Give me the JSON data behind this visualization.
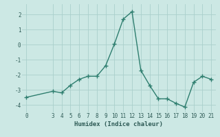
{
  "title": "",
  "xlabel": "Humidex (Indice chaleur)",
  "ylabel": "",
  "x": [
    0,
    3,
    4,
    5,
    6,
    7,
    8,
    9,
    10,
    11,
    12,
    13,
    14,
    15,
    16,
    17,
    18,
    19,
    20,
    21
  ],
  "y": [
    -3.5,
    -3.1,
    -3.2,
    -2.7,
    -2.3,
    -2.1,
    -2.1,
    -1.4,
    0.05,
    1.7,
    2.2,
    -1.7,
    -2.7,
    -3.6,
    -3.6,
    -3.9,
    -4.15,
    -2.5,
    -2.1,
    -2.3
  ],
  "line_color": "#2d7d6e",
  "bg_color": "#cce8e4",
  "grid_color": "#aacfcc",
  "text_color": "#2d5a55",
  "ylim": [
    -4.5,
    2.7
  ],
  "xlim": [
    -0.5,
    21.5
  ],
  "yticks": [
    -4,
    -3,
    -2,
    -1,
    0,
    1,
    2
  ],
  "xticks": [
    0,
    3,
    4,
    5,
    6,
    7,
    8,
    9,
    10,
    11,
    12,
    13,
    14,
    15,
    16,
    17,
    18,
    19,
    20,
    21
  ],
  "marker": "+",
  "markersize": 4,
  "linewidth": 1.0,
  "tick_fontsize": 5.5,
  "xlabel_fontsize": 6.5
}
